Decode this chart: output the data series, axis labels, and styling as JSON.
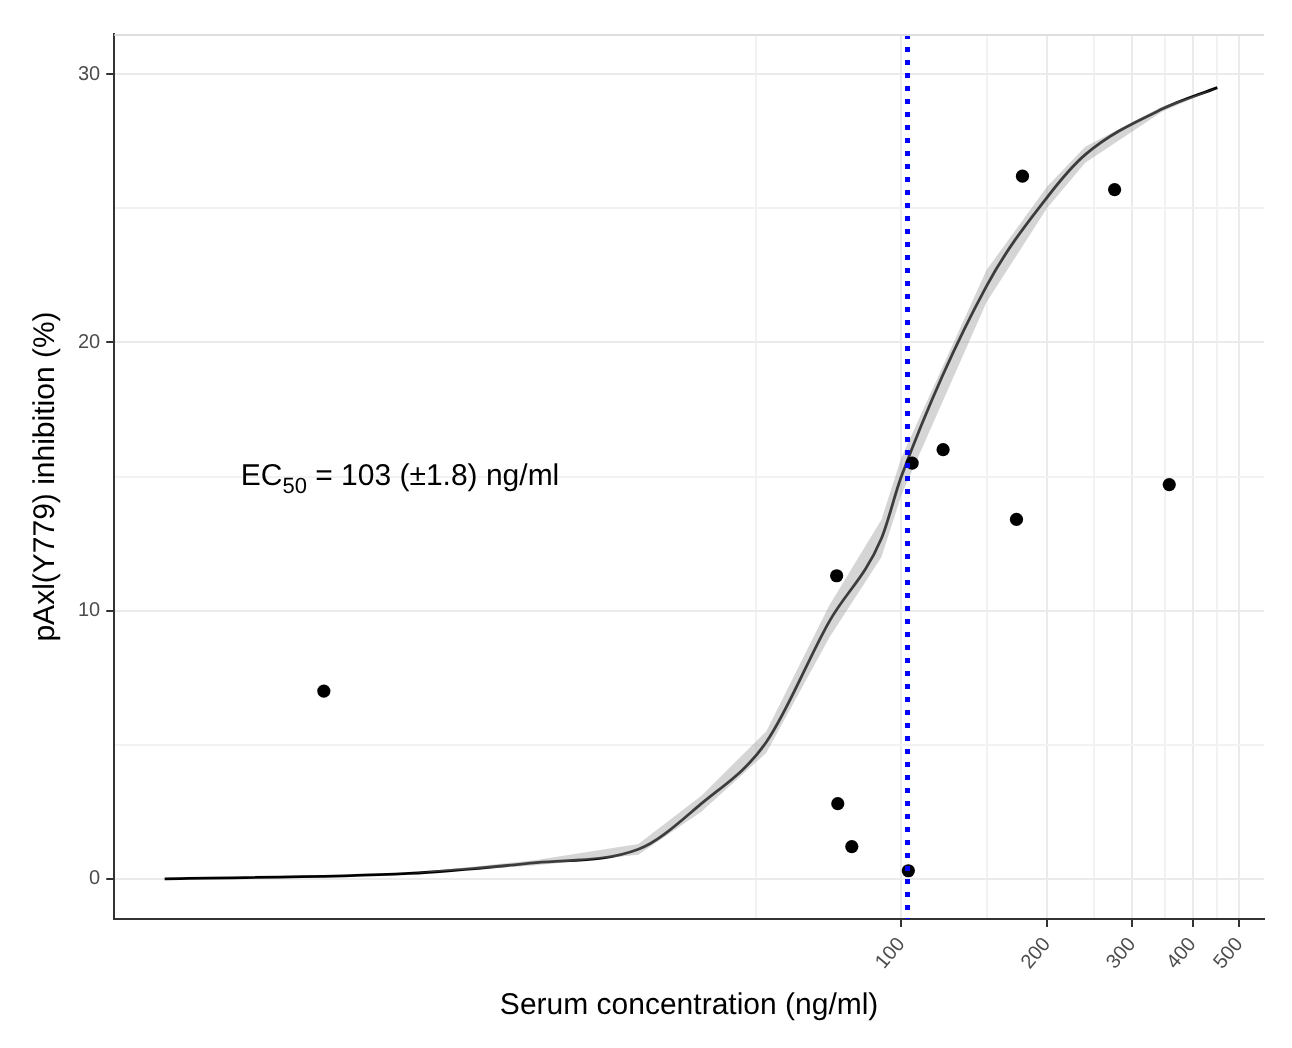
{
  "chart_data": {
    "type": "scatter",
    "xlabel": "Serum concentration (ng/ml)",
    "ylabel": "pAxl(Y779) inhibition (%)",
    "log": "x",
    "xlim": [
      2.36,
      562
    ],
    "ylim": [
      -1.5,
      31.5
    ],
    "xticks": [
      {
        "value": 50,
        "label": null
      },
      100,
      {
        "value": 150,
        "label": null
      },
      200,
      {
        "value": 250,
        "label": null
      },
      300,
      {
        "value": 350,
        "label": null
      },
      400,
      {
        "value": 450,
        "label": null
      },
      500
    ],
    "yticks": [
      0,
      {
        "value": 5,
        "label": null
      },
      10,
      {
        "value": 15,
        "label": null
      },
      20,
      {
        "value": 25,
        "label": null
      },
      30
    ],
    "grid": true,
    "series": [
      {
        "marker": "circle",
        "color": "#000000",
        "x": [
          6.4,
          73.5,
          73.9,
          79,
          103.4,
          105.3,
          122,
          178,
          173,
          276,
          358
        ],
        "values": [
          7.0,
          11.3,
          2.8,
          1.2,
          0.3,
          15.5,
          16.0,
          26.2,
          13.4,
          25.7,
          14.7
        ]
      },
      {
        "type": "line",
        "color": "#000000",
        "x": [
          3,
          9.6,
          17.6,
          28.6,
          38.6,
          52.6,
          71,
          91,
          100,
          150,
          200,
          240,
          346,
          450
        ],
        "values": [
          0,
          0.2,
          0.6,
          1.1,
          2.8,
          5.1,
          9.6,
          12.7,
          15.0,
          22.1,
          25.4,
          27.0,
          28.7,
          29.5
        ],
        "lower": [
          0,
          0.2,
          0.5,
          0.9,
          2.5,
          4.7,
          9.0,
          12.0,
          14.3,
          21.5,
          25.0,
          26.7,
          28.6,
          29.5
        ],
        "upper": [
          0,
          0.2,
          0.7,
          1.3,
          3.1,
          5.5,
          10.2,
          13.4,
          15.7,
          22.7,
          25.8,
          27.3,
          28.8,
          29.5
        ]
      }
    ],
    "ref_lines": [
      {
        "axis": "x",
        "value": 103,
        "color": "#0000ff",
        "line_style": "dotted"
      }
    ],
    "annotations": [
      "EC$_{50}$ = 103 (±1.8) ng/ml"
    ]
  }
}
